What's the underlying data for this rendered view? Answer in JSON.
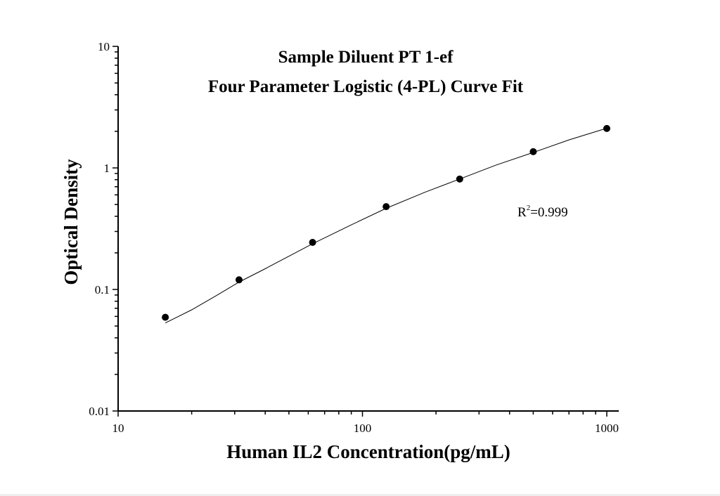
{
  "chart_data": {
    "type": "scatter",
    "title": [
      "Sample Diluent PT 1-ef",
      "Four Parameter Logistic (4-PL) Curve Fit"
    ],
    "xlabel": "Human IL2 Concentration(pg/mL)",
    "ylabel": "Optical Density",
    "x_scale": "log",
    "y_scale": "log",
    "xlim": [
      10,
      1120
    ],
    "ylim": [
      0.01,
      10
    ],
    "x_ticks": [
      {
        "value": 10,
        "label": "10"
      },
      {
        "value": 100,
        "label": "100"
      },
      {
        "value": 1000,
        "label": "1000"
      }
    ],
    "y_ticks": [
      {
        "value": 0.01,
        "label": "0.01"
      },
      {
        "value": 0.1,
        "label": "0.1"
      },
      {
        "value": 1,
        "label": "1"
      },
      {
        "value": 10,
        "label": "10"
      }
    ],
    "grid": false,
    "points": {
      "x": [
        15.6,
        31.25,
        62.5,
        125,
        250,
        500,
        1000
      ],
      "y": [
        0.059,
        0.12,
        0.244,
        0.48,
        0.81,
        1.36,
        2.11
      ]
    },
    "fit_curve": {
      "x": [
        15.6,
        20,
        25,
        31.25,
        40,
        62.5,
        90,
        125,
        180,
        250,
        350,
        500,
        700,
        1000
      ],
      "y": [
        0.053,
        0.068,
        0.088,
        0.115,
        0.148,
        0.238,
        0.34,
        0.465,
        0.63,
        0.81,
        1.05,
        1.34,
        1.7,
        2.12
      ]
    },
    "annotation": {
      "r_label": "R",
      "r_sup": "2",
      "r_value": "=0.999"
    },
    "colors": {
      "points": "#000000",
      "curve": "#000000",
      "axes": "#000000"
    }
  }
}
